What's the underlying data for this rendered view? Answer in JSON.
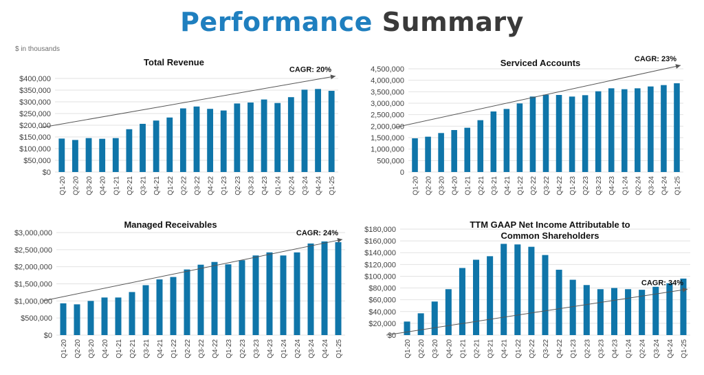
{
  "header": {
    "title_blue": "Performance",
    "title_dark": "Summary",
    "units_note": "$ in thousands"
  },
  "colors": {
    "bar": "#0f75a9",
    "title_blue": "#1f7fbf",
    "title_dark": "#3a3a3a",
    "trend": "#555555"
  },
  "chart_data": [
    {
      "type": "bar",
      "title": [
        "Total Revenue"
      ],
      "categories": [
        "Q1-20",
        "Q2-20",
        "Q3-20",
        "Q4-20",
        "Q1-21",
        "Q2-21",
        "Q3-21",
        "Q4-21",
        "Q1-22",
        "Q2-22",
        "Q3-22",
        "Q4-22",
        "Q1-23",
        "Q2-23",
        "Q3-23",
        "Q4-23",
        "Q1-24",
        "Q2-24",
        "Q3-24",
        "Q4-24",
        "Q1-25"
      ],
      "values": [
        143000,
        137000,
        145000,
        142000,
        145000,
        183000,
        206000,
        220000,
        233000,
        272000,
        280000,
        270000,
        263000,
        293000,
        297000,
        310000,
        295000,
        320000,
        352000,
        355000,
        347000
      ],
      "ylim": [
        0,
        400000
      ],
      "yticks": [
        0,
        50000,
        100000,
        150000,
        200000,
        250000,
        300000,
        350000,
        400000
      ],
      "ytick_labels": [
        "$0",
        "$50,000",
        "$100,000",
        "$150,000",
        "$200,000",
        "$250,000",
        "$300,000",
        "$350,000",
        "$400,000"
      ],
      "annotation": "CAGR: 20%",
      "trendline": {
        "start_value": 190000,
        "end_value": 410000
      }
    },
    {
      "type": "bar",
      "title": [
        "Serviced Accounts"
      ],
      "categories": [
        "Q1-20",
        "Q2-20",
        "Q3-20",
        "Q4-20",
        "Q1-21",
        "Q2-21",
        "Q3-21",
        "Q4-21",
        "Q1-22",
        "Q2-22",
        "Q3-22",
        "Q4-22",
        "Q1-23",
        "Q2-23",
        "Q3-23",
        "Q4-23",
        "Q1-24",
        "Q2-24",
        "Q3-24",
        "Q4-24",
        "Q1-25"
      ],
      "values": [
        1470000,
        1540000,
        1700000,
        1830000,
        1930000,
        2260000,
        2640000,
        2750000,
        2990000,
        3290000,
        3370000,
        3360000,
        3290000,
        3350000,
        3520000,
        3650000,
        3610000,
        3650000,
        3730000,
        3790000,
        3870000
      ],
      "ylim": [
        0,
        4500000
      ],
      "yticks": [
        0,
        500000,
        1000000,
        1500000,
        2000000,
        2500000,
        3000000,
        3500000,
        4000000,
        4500000
      ],
      "ytick_labels": [
        "0",
        "500,000",
        "1,000,000",
        "1,500,000",
        "2,000,000",
        "2,500,000",
        "3,000,000",
        "3,500,000",
        "4,000,000",
        "4,500,000"
      ],
      "annotation": "CAGR: 23%",
      "trendline": {
        "start_value": 1940000,
        "end_value": 4650000
      }
    },
    {
      "type": "bar",
      "title": [
        "Managed Receivables"
      ],
      "categories": [
        "Q1-20",
        "Q2-20",
        "Q3-20",
        "Q4-20",
        "Q1-21",
        "Q2-21",
        "Q3-21",
        "Q4-21",
        "Q1-22",
        "Q2-22",
        "Q3-22",
        "Q4-22",
        "Q1-23",
        "Q2-23",
        "Q3-23",
        "Q4-23",
        "Q1-24",
        "Q2-24",
        "Q3-24",
        "Q4-24",
        "Q1-25"
      ],
      "values": [
        930000,
        900000,
        1000000,
        1100000,
        1100000,
        1260000,
        1460000,
        1630000,
        1700000,
        1920000,
        2060000,
        2140000,
        2070000,
        2190000,
        2330000,
        2420000,
        2330000,
        2420000,
        2680000,
        2740000,
        2720000
      ],
      "ylim": [
        0,
        3000000
      ],
      "yticks": [
        0,
        500000,
        1000000,
        1500000,
        2000000,
        2500000,
        3000000
      ],
      "ytick_labels": [
        "$0",
        "$500,000",
        "$1,000,000",
        "$1,500,000",
        "$2,000,000",
        "$2,500,000",
        "$3,000,000"
      ],
      "annotation": "CAGR: 24%",
      "trendline": {
        "start_value": 1000000,
        "end_value": 2800000
      }
    },
    {
      "type": "bar",
      "title": [
        "TTM GAAP Net Income Attributable to",
        "Common Shareholders"
      ],
      "categories": [
        "Q1-20",
        "Q2-20",
        "Q3-20",
        "Q4-20",
        "Q1-21",
        "Q2-21",
        "Q3-21",
        "Q4-21",
        "Q1-22",
        "Q2-22",
        "Q3-22",
        "Q4-22",
        "Q1-23",
        "Q2-23",
        "Q3-23",
        "Q4-23",
        "Q1-24",
        "Q2-24",
        "Q3-24",
        "Q4-24",
        "Q1-25"
      ],
      "values": [
        23000,
        37000,
        57000,
        78000,
        114000,
        128000,
        134000,
        155000,
        154000,
        150000,
        136000,
        111000,
        94000,
        85000,
        78000,
        80000,
        78000,
        77000,
        82000,
        88000,
        96000
      ],
      "ylim": [
        0,
        180000
      ],
      "yticks": [
        0,
        20000,
        40000,
        60000,
        80000,
        100000,
        120000,
        140000,
        160000,
        180000
      ],
      "ytick_labels": [
        "$0",
        "$20,000",
        "$40,000",
        "$60,000",
        "$80,000",
        "$100,000",
        "$120,000",
        "$140,000",
        "$160,000",
        "$180,000"
      ],
      "annotation": "CAGR: 34%",
      "trendline": {
        "start_value": 0,
        "end_value": 78000
      }
    }
  ]
}
